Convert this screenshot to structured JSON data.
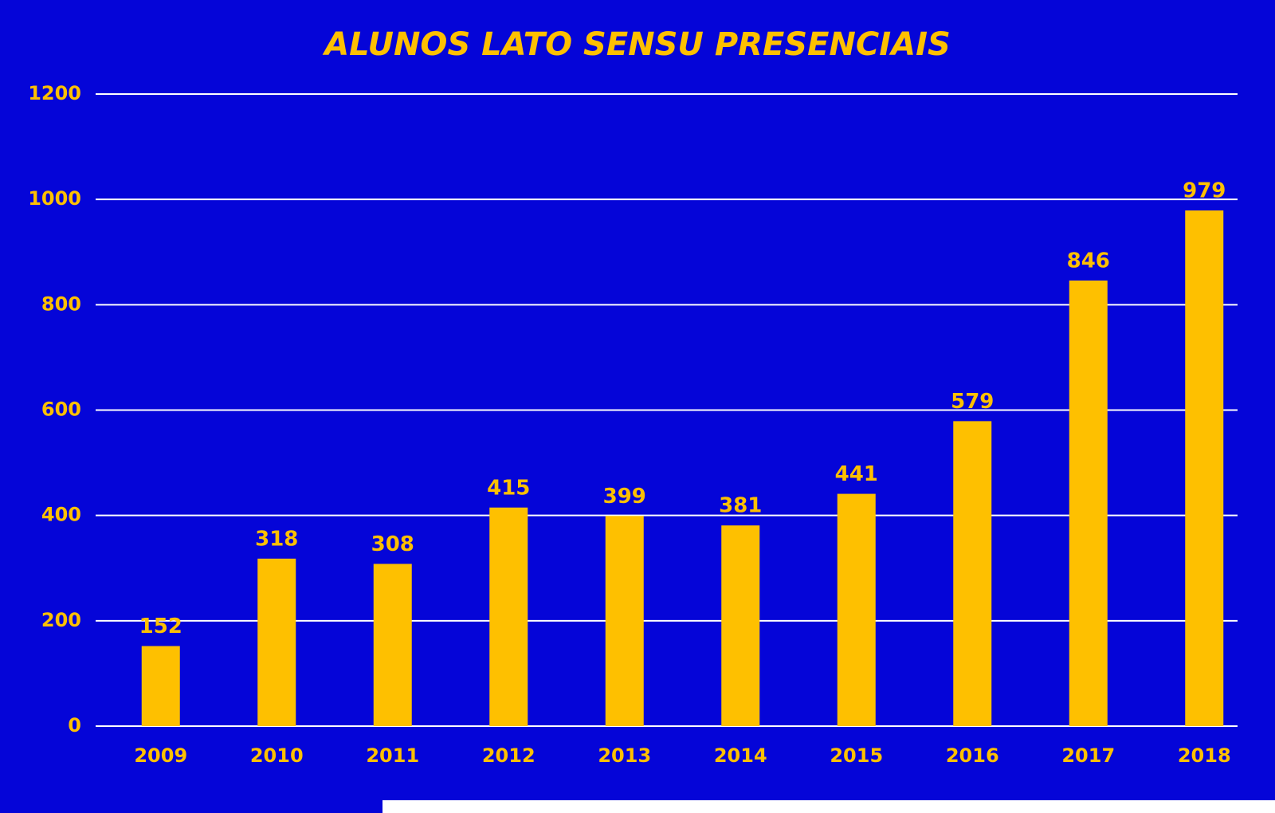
{
  "chart_data": {
    "type": "bar",
    "title": "ALUNOS LATO SENSU PRESENCIAIS",
    "categories": [
      "2009",
      "2010",
      "2011",
      "2012",
      "2013",
      "2014",
      "2015",
      "2016",
      "2017",
      "2018"
    ],
    "values": [
      152,
      318,
      308,
      415,
      399,
      381,
      441,
      579,
      846,
      979
    ],
    "color": "#fec000",
    "ylim": [
      0,
      1200
    ],
    "yticks": [
      0,
      200,
      400,
      600,
      800,
      1000,
      1200
    ],
    "grid": true
  }
}
